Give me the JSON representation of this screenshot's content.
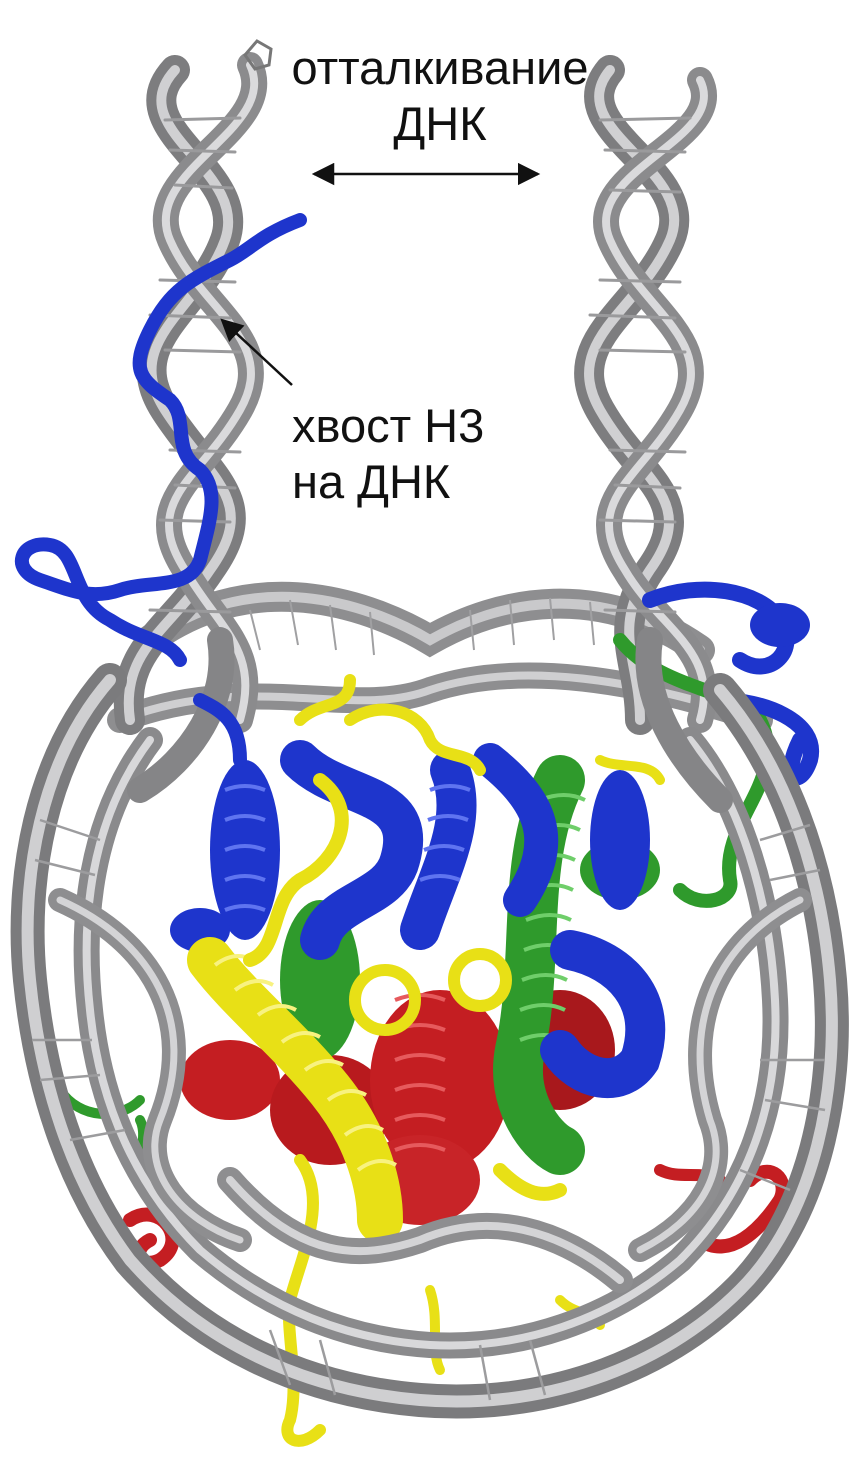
{
  "annotations": {
    "dna_repulsion": {
      "line1": "отталкивание",
      "line2": "ДНК"
    },
    "h3_tail": {
      "line1": "хвост H3",
      "line2": "на ДНК"
    }
  },
  "colors": {
    "dna": "#9a9a9c",
    "dna_light": "#c8c8ca",
    "dna_dark": "#5e5e60",
    "blue_histone": "#1e35cc",
    "green_histone": "#2f9a2c",
    "yellow_histone": "#e8e016",
    "red_histone": "#c41e22",
    "text": "#111111"
  }
}
